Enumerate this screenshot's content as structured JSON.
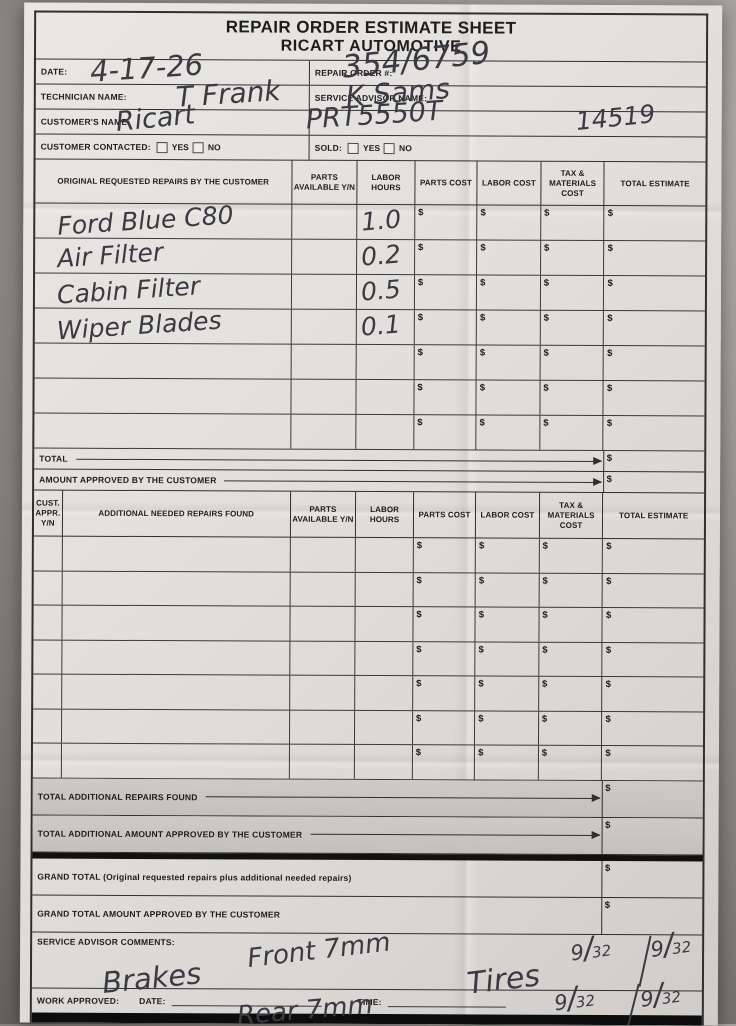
{
  "title": {
    "line1": "REPAIR ORDER ESTIMATE SHEET",
    "line2": "RICART AUTOMOTIVE"
  },
  "header": {
    "date_label": "DATE:",
    "repair_order_label": "REPAIR ORDER #:",
    "technician_label": "TECHNICIAN NAME:",
    "service_advisor_label": "SERVICE ADVISOR NAME:",
    "customer_label": "CUSTOMER'S NAME:",
    "customer_contacted_label": "CUSTOMER CONTACTED:",
    "sold_label": "SOLD:",
    "yes": "YES",
    "no": "NO"
  },
  "handwriting": {
    "date": "4-17-26",
    "repair_order": "354/6759",
    "technician": "T Frank",
    "service_advisor": "K Sams",
    "customer": "Ricart",
    "reference": "PRT5550T",
    "number_right": "14519"
  },
  "original_table": {
    "headers": [
      "ORIGINAL REQUESTED REPAIRS BY THE CUSTOMER",
      "PARTS AVAILABLE Y/N",
      "LABOR HOURS",
      "PARTS COST",
      "LABOR COST",
      "TAX & MATERIALS COST",
      "TOTAL ESTIMATE"
    ],
    "rows": [
      {
        "description": "Ford Blue C80",
        "labor_hours": "1.0"
      },
      {
        "description": "Air Filter",
        "labor_hours": "0.2"
      },
      {
        "description": "Cabin Filter",
        "labor_hours": "0.5"
      },
      {
        "description": "Wiper Blades",
        "labor_hours": "0.1"
      },
      {
        "description": "",
        "labor_hours": ""
      },
      {
        "description": "",
        "labor_hours": ""
      },
      {
        "description": "",
        "labor_hours": ""
      }
    ],
    "currency": "$",
    "total_label": "TOTAL",
    "approved_label": "AMOUNT APPROVED BY THE CUSTOMER"
  },
  "additional_table": {
    "headers": [
      "CUST. APPR. Y/N",
      "ADDITIONAL NEEDED REPAIRS FOUND",
      "PARTS AVAILABLE Y/N",
      "LABOR HOURS",
      "PARTS COST",
      "LABOR COST",
      "TAX & MATERIALS COST",
      "TOTAL ESTIMATE"
    ],
    "empty_row_count": 7,
    "total_found_label": "TOTAL ADDITIONAL REPAIRS FOUND",
    "total_approved_label": "TOTAL ADDITIONAL AMOUNT APPROVED BY THE CUSTOMER"
  },
  "grand": {
    "grand_total_label": "GRAND TOTAL (Original requested repairs plus additional needed repairs)",
    "grand_approved_label": "GRAND TOTAL AMOUNT APPROVED BY THE CUSTOMER"
  },
  "comments": {
    "label": "SERVICE ADVISOR COMMENTS:",
    "brakes": "Brakes",
    "front": "Front 7mm",
    "rear": "Rear 7mm",
    "tires": "Tires",
    "tread_readings": [
      "9/32",
      "9/32",
      "9/32",
      "9/32"
    ]
  },
  "footer": {
    "work_approved_label": "WORK APPROVED:",
    "date_label": "DATE:",
    "time_label": "TIME:"
  }
}
